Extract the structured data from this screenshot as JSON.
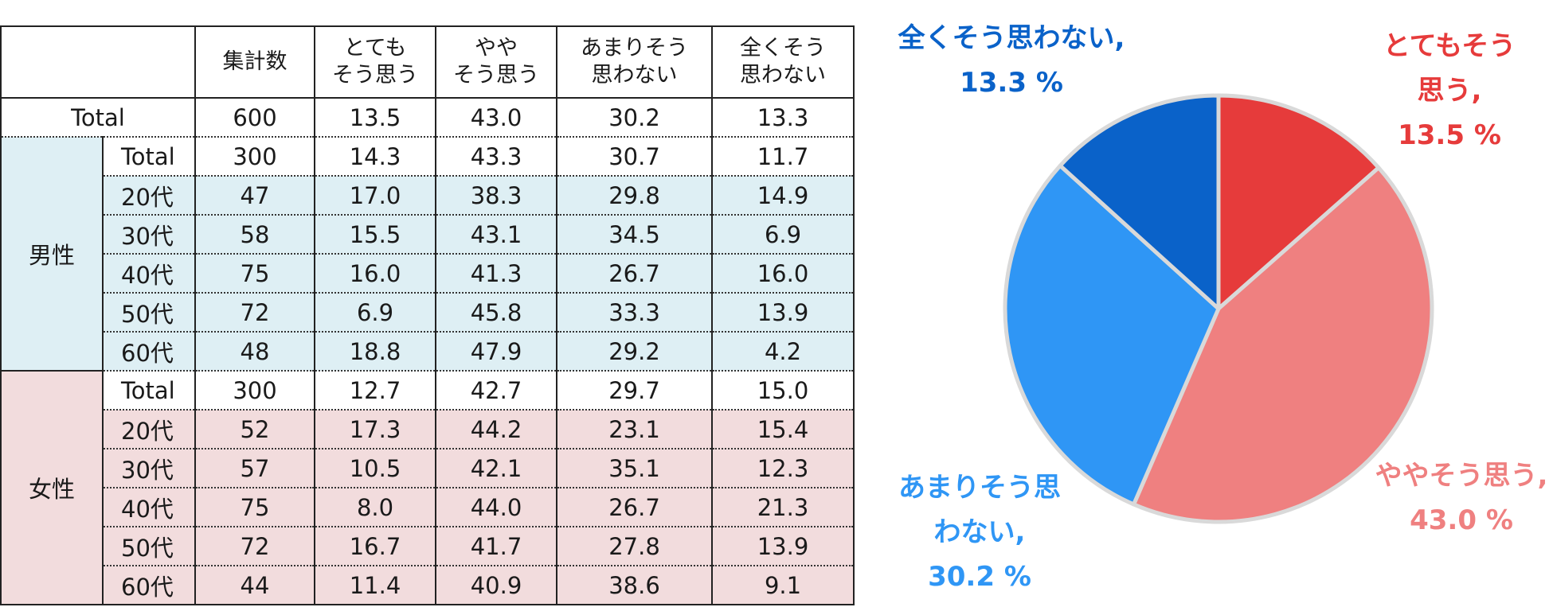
{
  "table": {
    "headers": [
      "集計数",
      "とても\nそう思う",
      "やや\nそう思う",
      "あまりそう\n思わない",
      "全くそう\n思わない"
    ],
    "total_row": {
      "label": "Total",
      "values": [
        "600",
        "13.5",
        "43.0",
        "30.2",
        "13.3"
      ]
    },
    "groups": [
      {
        "label": "男性",
        "rows": [
          {
            "label": "Total",
            "values": [
              "300",
              "14.3",
              "43.3",
              "30.7",
              "11.7"
            ]
          },
          {
            "label": "20代",
            "values": [
              "47",
              "17.0",
              "38.3",
              "29.8",
              "14.9"
            ]
          },
          {
            "label": "30代",
            "values": [
              "58",
              "15.5",
              "43.1",
              "34.5",
              "6.9"
            ]
          },
          {
            "label": "40代",
            "values": [
              "75",
              "16.0",
              "41.3",
              "26.7",
              "16.0"
            ]
          },
          {
            "label": "50代",
            "values": [
              "72",
              "6.9",
              "45.8",
              "33.3",
              "13.9"
            ]
          },
          {
            "label": "60代",
            "values": [
              "48",
              "18.8",
              "47.9",
              "29.2",
              "4.2"
            ]
          }
        ]
      },
      {
        "label": "女性",
        "rows": [
          {
            "label": "Total",
            "values": [
              "300",
              "12.7",
              "42.7",
              "29.7",
              "15.0"
            ]
          },
          {
            "label": "20代",
            "values": [
              "52",
              "17.3",
              "44.2",
              "23.1",
              "15.4"
            ]
          },
          {
            "label": "30代",
            "values": [
              "57",
              "10.5",
              "42.1",
              "35.1",
              "12.3"
            ]
          },
          {
            "label": "40代",
            "values": [
              "75",
              "8.0",
              "44.0",
              "26.7",
              "21.3"
            ]
          },
          {
            "label": "50代",
            "values": [
              "72",
              "16.7",
              "41.7",
              "27.8",
              "13.9"
            ]
          },
          {
            "label": "60代",
            "values": [
              "44",
              "11.4",
              "40.9",
              "38.6",
              "9.1"
            ]
          }
        ]
      }
    ]
  },
  "chart_data": {
    "type": "pie",
    "slices": [
      {
        "label_lines": [
          "とてもそう",
          "思う,",
          "13.5 %"
        ],
        "value": 13.5,
        "color": "#e63b3b"
      },
      {
        "label_lines": [
          "ややそう思う,",
          "43.0 %"
        ],
        "value": 43.0,
        "color": "#ef8080"
      },
      {
        "label_lines": [
          "あまりそう思",
          "わない,",
          "30.2 %"
        ],
        "value": 30.2,
        "color": "#2f96f5"
      },
      {
        "label_lines": [
          "全くそう思わない,",
          "13.3 %"
        ],
        "value": 13.3,
        "color": "#0a62c9"
      }
    ],
    "start_angle_deg": 0,
    "direction": "clockwise"
  }
}
